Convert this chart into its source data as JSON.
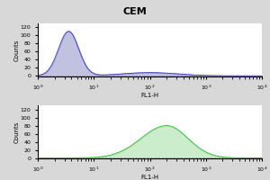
{
  "title": "CEM",
  "title_fontsize": 8,
  "xlabel": "FL1-H",
  "ylabel": "Counts",
  "xlabel_fontsize": 5,
  "ylabel_fontsize": 5,
  "tick_fontsize": 4.5,
  "background_color": "#d8d8d8",
  "panel_bg": "#ffffff",
  "top_line_color": "#4444bb",
  "top_fill_color": "#9999cc",
  "bottom_line_color": "#44bb44",
  "bottom_fill_color": "#99dd99",
  "xlim_low": 1,
  "xlim_high": 10000,
  "yticks": [
    0,
    20,
    40,
    60,
    80,
    100,
    120
  ],
  "top_peak_log_center": 0.55,
  "top_peak_height": 110,
  "top_peak_width": 0.18,
  "top_tail_height": 5,
  "bottom_peak_log_center": 2.3,
  "bottom_peak_height": 80,
  "bottom_peak_width": 0.38,
  "dashed_y": 1.5
}
